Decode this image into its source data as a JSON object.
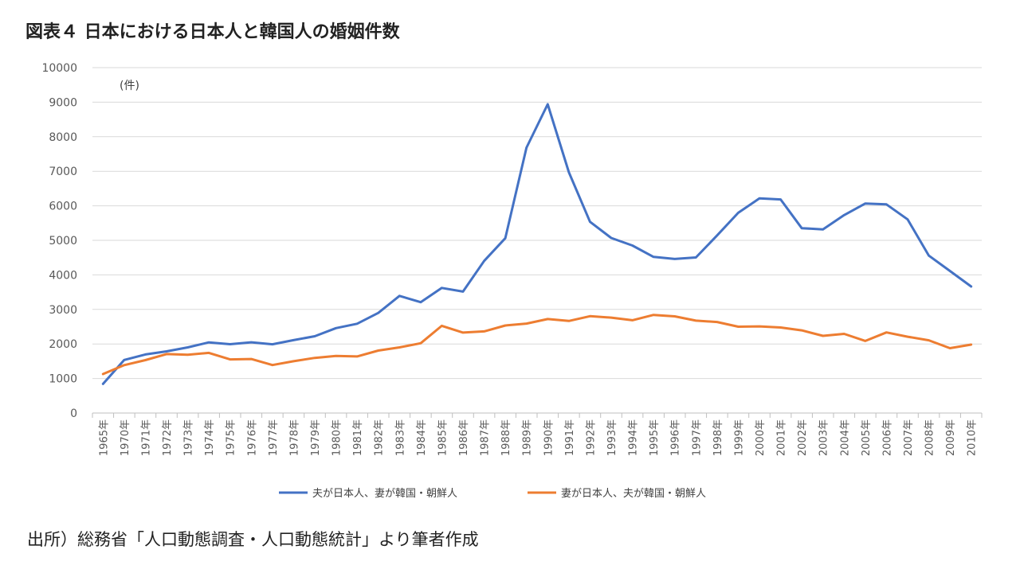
{
  "title": "図表４ 日本における日本人と韓国人の婚姻件数",
  "source": "出所）総務省「人口動態調査・人口動態統計」より筆者作成",
  "chart_data": {
    "type": "line",
    "unit_label": "(件)",
    "ylim": [
      0,
      10000
    ],
    "yticks": [
      0,
      1000,
      2000,
      3000,
      4000,
      5000,
      6000,
      7000,
      8000,
      9000,
      10000
    ],
    "grid": true,
    "legend_position": "bottom",
    "categories": [
      "1965年",
      "1970年",
      "1971年",
      "1972年",
      "1973年",
      "1974年",
      "1975年",
      "1976年",
      "1977年",
      "1978年",
      "1979年",
      "1980年",
      "1981年",
      "1982年",
      "1983年",
      "1984年",
      "1985年",
      "1986年",
      "1987年",
      "1988年",
      "1989年",
      "1990年",
      "1991年",
      "1992年",
      "1993年",
      "1994年",
      "1995年",
      "1996年",
      "1997年",
      "1998年",
      "1999年",
      "2000年",
      "2001年",
      "2002年",
      "2003年",
      "2004年",
      "2005年",
      "2006年",
      "2007年",
      "2008年",
      "2009年",
      "2010年"
    ],
    "series": [
      {
        "name": "夫が日本人、妻が韓国・朝鮮人",
        "color": "#4472C4",
        "values": [
          843,
          1536,
          1696,
          1785,
          1902,
          2047,
          1994,
          2049,
          1990,
          2110,
          2224,
          2458,
          2585,
          2899,
          3391,
          3209,
          3622,
          3515,
          4405,
          5063,
          7685,
          8940,
          6969,
          5537,
          5068,
          4851,
          4521,
          4461,
          4504,
          5143,
          5798,
          6214,
          6185,
          5353,
          5318,
          5730,
          6066,
          6041,
          5606,
          4558,
          4113,
          3664
        ]
      },
      {
        "name": "妻が日本人、夫が韓国・朝鮮人",
        "color": "#ED7D31",
        "values": [
          1128,
          1386,
          1533,
          1707,
          1689,
          1743,
          1554,
          1564,
          1390,
          1500,
          1597,
          1651,
          1638,
          1809,
          1901,
          2021,
          2525,
          2330,
          2365,
          2535,
          2589,
          2721,
          2666,
          2804,
          2762,
          2686,
          2842,
          2800,
          2674,
          2635,
          2499,
          2509,
          2477,
          2395,
          2235,
          2293,
          2087,
          2335,
          2209,
          2107,
          1879,
          1982
        ]
      }
    ]
  }
}
